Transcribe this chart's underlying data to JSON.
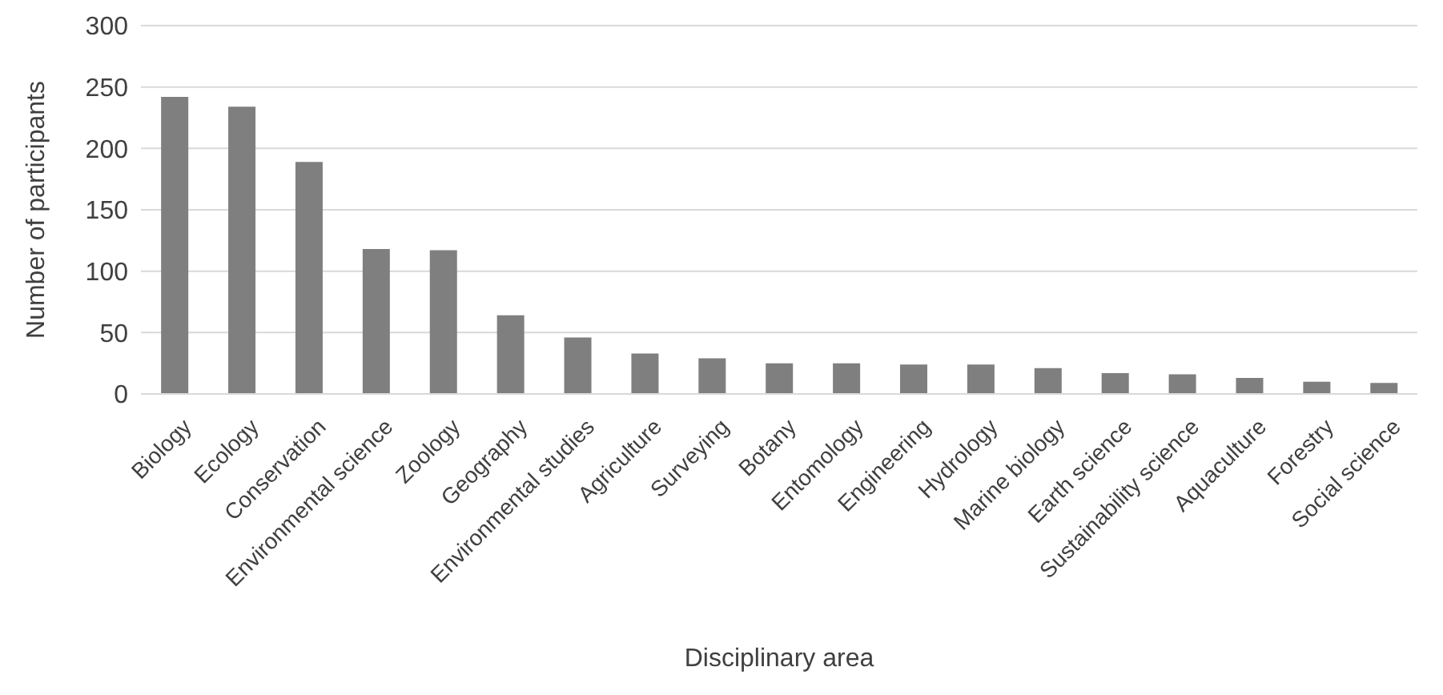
{
  "chart_data": {
    "type": "bar",
    "xlabel": "Disciplinary area",
    "ylabel": "Number of participants",
    "categories": [
      "Biology",
      "Ecology",
      "Conservation",
      "Environmental science",
      "Zoology",
      "Geography",
      "Environmental studies",
      "Agriculture",
      "Surveying",
      "Botany",
      "Entomology",
      "Engineering",
      "Hydrology",
      "Marine biology",
      "Earth science",
      "Sustainability science",
      "Aquaculture",
      "Forestry",
      "Social science"
    ],
    "values": [
      242,
      234,
      189,
      118,
      117,
      64,
      46,
      33,
      29,
      25,
      25,
      24,
      24,
      21,
      17,
      16,
      13,
      10,
      9
    ],
    "color": "#7f7f7f",
    "ylim": [
      0,
      300
    ],
    "yticks": [
      0,
      50,
      100,
      150,
      200,
      250,
      300
    ],
    "grid": "y"
  }
}
